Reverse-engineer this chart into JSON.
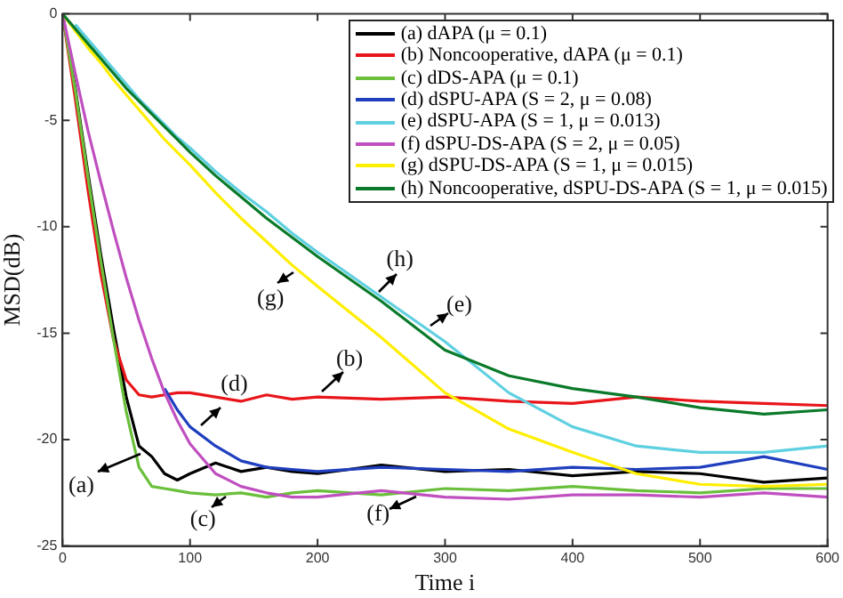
{
  "chart_data": {
    "type": "line",
    "xlabel": "Time i",
    "ylabel": "MSD(dB)",
    "x": [
      0,
      10,
      20,
      30,
      40,
      50,
      60,
      70,
      80,
      90,
      100,
      120,
      140,
      160,
      180,
      200,
      250,
      300,
      350,
      400,
      450,
      500,
      550,
      600
    ],
    "series": [
      {
        "name": "(a) dAPA (μ = 0.1)",
        "color": "#000000",
        "values": [
          0,
          -3.5,
          -7.5,
          -11.3,
          -14.8,
          -18,
          -20.3,
          -20.8,
          -21.6,
          -21.9,
          -21.6,
          -21.1,
          -21.5,
          -21.3,
          -21.5,
          -21.6,
          -21.2,
          -21.5,
          -21.4,
          -21.7,
          -21.5,
          -21.6,
          -22,
          -21.8
        ]
      },
      {
        "name": "(b) Noncooperative, dAPA (μ = 0.1)",
        "color": "#e8151a",
        "values": [
          0,
          -4,
          -8.3,
          -12.2,
          -15.3,
          -17.2,
          -17.9,
          -18,
          -17.9,
          -17.8,
          -17.8,
          -18,
          -18.2,
          -17.9,
          -18.1,
          -18,
          -18.1,
          -18,
          -18.2,
          -18.3,
          -18,
          -18.2,
          -18.3,
          -18.4
        ]
      },
      {
        "name": "(c) dDS-APA (μ = 0.1)",
        "color": "#6abf3b",
        "values": [
          0,
          -3.6,
          -7.7,
          -11.6,
          -15.3,
          -18.7,
          -21.3,
          -22.2,
          -22.3,
          -22.4,
          -22.5,
          -22.6,
          -22.5,
          -22.7,
          -22.5,
          -22.4,
          -22.6,
          -22.3,
          -22.4,
          -22.2,
          -22.4,
          -22.5,
          -22.3,
          -22.3
        ]
      },
      {
        "name": "(d) dSPU-APA (S = 2, μ = 0.08)",
        "color": "#1f3fbf",
        "values": [
          null,
          null,
          null,
          null,
          null,
          null,
          null,
          null,
          -17.6,
          -18.6,
          -19.4,
          -20.3,
          -21,
          -21.3,
          -21.4,
          -21.5,
          -21.3,
          -21.4,
          -21.5,
          -21.3,
          -21.4,
          -21.3,
          -20.8,
          -21.4
        ]
      },
      {
        "name": "(e) dSPU-APA (S = 1, μ = 0.013)",
        "color": "#5fd0e0",
        "values": [
          null,
          -0.5,
          -1.2,
          -1.9,
          -2.6,
          -3.3,
          -4,
          -4.6,
          -5.2,
          -5.8,
          -6.3,
          -7.4,
          -8.4,
          -9.3,
          -10.3,
          -11.2,
          -13.3,
          -15.4,
          -17.8,
          -19.4,
          -20.3,
          -20.6,
          -20.6,
          -20.3
        ]
      },
      {
        "name": "(f) dSPU-DS-APA (S = 2, μ = 0.05)",
        "color": "#c04fc0",
        "values": [
          0,
          -2.8,
          -5.5,
          -7.9,
          -10.2,
          -12.4,
          -14.4,
          -16.2,
          -17.8,
          -19.1,
          -20.2,
          -21.6,
          -22.2,
          -22.5,
          -22.7,
          -22.7,
          -22.4,
          -22.7,
          -22.8,
          -22.6,
          -22.6,
          -22.7,
          -22.5,
          -22.7
        ]
      },
      {
        "name": "(g) dSPU-DS-APA (S = 1, μ = 0.015)",
        "color": "#ffee00",
        "values": [
          0,
          -0.8,
          -1.6,
          -2.3,
          -3.1,
          -3.8,
          -4.5,
          -5.2,
          -5.9,
          -6.5,
          -7.1,
          -8.4,
          -9.6,
          -10.7,
          -11.8,
          -12.8,
          -15.2,
          -17.8,
          -19.5,
          -20.6,
          -21.6,
          -22.1,
          -22.2,
          -22.1
        ]
      },
      {
        "name": "(h) Noncooperative, dSPU-DS-APA (S = 1, μ = 0.015)",
        "color": "#0a7a2a",
        "values": [
          0,
          -0.7,
          -1.4,
          -2.1,
          -2.8,
          -3.5,
          -4.1,
          -4.7,
          -5.3,
          -5.9,
          -6.5,
          -7.6,
          -8.6,
          -9.6,
          -10.5,
          -11.4,
          -13.5,
          -15.8,
          -17,
          -17.6,
          -18,
          -18.5,
          -18.8,
          -18.6
        ]
      }
    ],
    "xlim": [
      0,
      600
    ],
    "xticks": [
      0,
      100,
      200,
      300,
      400,
      500,
      600
    ],
    "ylim": [
      -25,
      0
    ],
    "yticks": [
      -25,
      -20,
      -15,
      -10,
      -5,
      0
    ],
    "legend": "top right",
    "marker": "none",
    "line_style": "solid",
    "annotations": [
      {
        "text": "(a)",
        "x": 65,
        "y": -20.5
      },
      {
        "text": "(b)",
        "x": 200,
        "y": -18
      },
      {
        "text": "(c)",
        "x": 131,
        "y": -22.5
      },
      {
        "text": "(d)",
        "x": 104,
        "y": -19.6
      },
      {
        "text": "(e)",
        "x": 286,
        "y": -14.8
      },
      {
        "text": "(f)",
        "x": 281,
        "y": -22.6
      },
      {
        "text": "(g)",
        "x": 184,
        "y": -12
      },
      {
        "text": "(h)",
        "x": 245,
        "y": -13.3
      }
    ]
  }
}
